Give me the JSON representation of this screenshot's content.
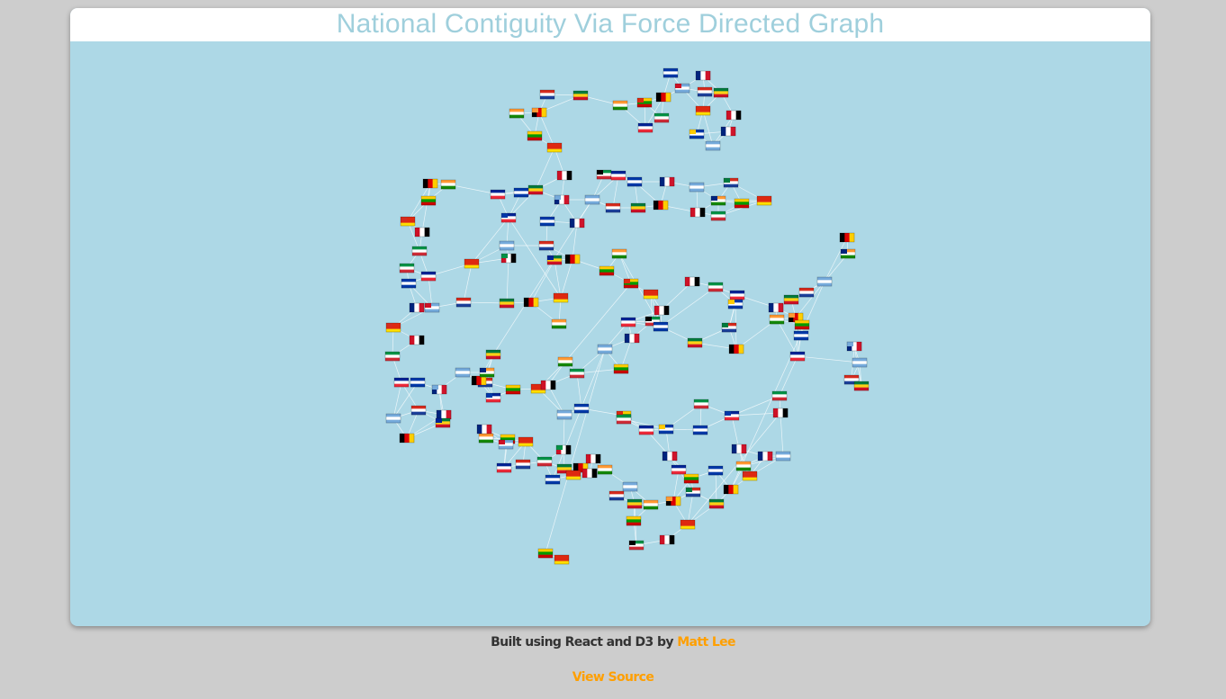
{
  "title": "National Contiguity Via Force Directed Graph",
  "footer": {
    "credit_prefix": "Built using React and D3 by ",
    "author": "Matt Lee",
    "view_source": "View Source"
  },
  "colors": {
    "page_bg": "#cdcdcd",
    "canvas_bg": "#add8e6",
    "title_text": "#9fcfdc",
    "link": "#ff9f00",
    "edge": "#ffffff"
  },
  "graph": {
    "node_icon": "country-flag-icon",
    "edge_style": "thin white lines between bordering countries",
    "flag_palettes": [
      [
        "#d52b1e",
        "#ffffff",
        "#1b3f9a"
      ],
      [
        "#009246",
        "#ffffff",
        "#ce2b37"
      ],
      [
        "#000000",
        "#dd0000",
        "#ffce00"
      ],
      [
        "#0038a8",
        "#ffffff",
        "#0038a8"
      ],
      [
        "#ffcc00",
        "#009900",
        "#cc0000"
      ],
      [
        "#75aadb",
        "#ffffff",
        "#75aadb"
      ],
      [
        "#ce1126",
        "#ffffff",
        "#000000"
      ],
      [
        "#007a3d",
        "#fcd116",
        "#ce1126"
      ],
      [
        "#002395",
        "#ffffff",
        "#ed2939"
      ],
      [
        "#ff9933",
        "#ffffff",
        "#138808"
      ],
      [
        "#00247d",
        "#ffffff",
        "#cf142b"
      ],
      [
        "#de2910",
        "#de2910",
        "#ffde00"
      ]
    ]
  }
}
